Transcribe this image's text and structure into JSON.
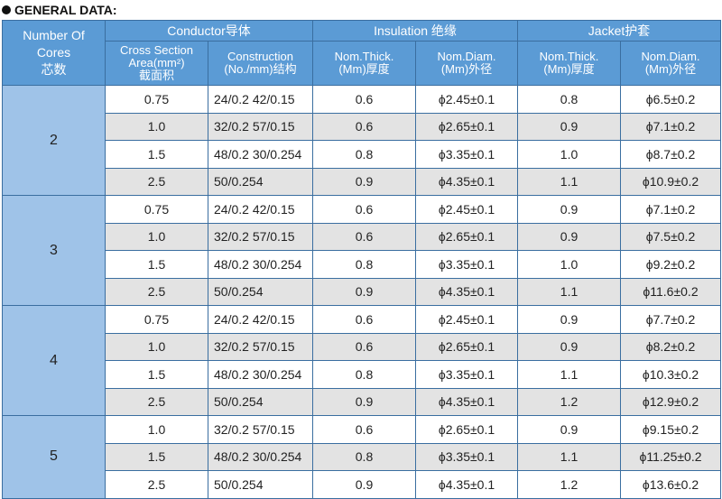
{
  "title": "GENERAL DATA:",
  "header": {
    "cores": [
      "Number Of",
      "Cores",
      "芯数"
    ],
    "conductor": "Conductor导体",
    "insulation": "Insulation 绝缘",
    "jacket": "Jacket护套",
    "cross_section": [
      "Cross Section",
      "Area(mm²)",
      "截面积"
    ],
    "construction": [
      "Construction",
      "(No./mm)结构"
    ],
    "ins_thick": [
      "Nom.Thick.",
      "(Mm)厚度"
    ],
    "ins_diam": [
      "Nom.Diam.",
      "(Mm)外径"
    ],
    "jac_thick": [
      "Nom.Thick.",
      "(Mm)厚度"
    ],
    "jac_diam": [
      "Nom.Diam.",
      "(Mm)外径"
    ]
  },
  "groups": [
    {
      "cores": "2",
      "rows": [
        {
          "area": "0.75",
          "construction": "24/0.2  42/0.15",
          "ins_thick": "0.6",
          "ins_diam": "ϕ2.45±0.1",
          "jac_thick": "0.8",
          "jac_diam": "ϕ6.5±0.2"
        },
        {
          "area": "1.0",
          "construction": "32/0.2  57/0.15",
          "ins_thick": "0.6",
          "ins_diam": "ϕ2.65±0.1",
          "jac_thick": "0.9",
          "jac_diam": "ϕ7.1±0.2"
        },
        {
          "area": "1.5",
          "construction": "48/0.2 30/0.254",
          "ins_thick": "0.8",
          "ins_diam": "ϕ3.35±0.1",
          "jac_thick": "1.0",
          "jac_diam": "ϕ8.7±0.2"
        },
        {
          "area": "2.5",
          "construction": "50/0.254",
          "ins_thick": "0.9",
          "ins_diam": "ϕ4.35±0.1",
          "jac_thick": "1.1",
          "jac_diam": "ϕ10.9±0.2"
        }
      ]
    },
    {
      "cores": "3",
      "rows": [
        {
          "area": "0.75",
          "construction": "24/0.2  42/0.15",
          "ins_thick": "0.6",
          "ins_diam": "ϕ2.45±0.1",
          "jac_thick": "0.9",
          "jac_diam": "ϕ7.1±0.2"
        },
        {
          "area": "1.0",
          "construction": "32/0.2  57/0.15",
          "ins_thick": "0.6",
          "ins_diam": "ϕ2.65±0.1",
          "jac_thick": "0.9",
          "jac_diam": "ϕ7.5±0.2"
        },
        {
          "area": "1.5",
          "construction": "48/0.2 30/0.254",
          "ins_thick": "0.8",
          "ins_diam": "ϕ3.35±0.1",
          "jac_thick": "1.0",
          "jac_diam": "ϕ9.2±0.2"
        },
        {
          "area": "2.5",
          "construction": "50/0.254",
          "ins_thick": "0.9",
          "ins_diam": "ϕ4.35±0.1",
          "jac_thick": "1.1",
          "jac_diam": "ϕ11.6±0.2"
        }
      ]
    },
    {
      "cores": "4",
      "rows": [
        {
          "area": "0.75",
          "construction": "24/0.2  42/0.15",
          "ins_thick": "0.6",
          "ins_diam": "ϕ2.45±0.1",
          "jac_thick": "0.9",
          "jac_diam": "ϕ7.7±0.2"
        },
        {
          "area": "1.0",
          "construction": "32/0.2  57/0.15",
          "ins_thick": "0.6",
          "ins_diam": "ϕ2.65±0.1",
          "jac_thick": "0.9",
          "jac_diam": "ϕ8.2±0.2"
        },
        {
          "area": "1.5",
          "construction": "48/0.2 30/0.254",
          "ins_thick": "0.8",
          "ins_diam": "ϕ3.35±0.1",
          "jac_thick": "1.1",
          "jac_diam": "ϕ10.3±0.2"
        },
        {
          "area": "2.5",
          "construction": "50/0.254",
          "ins_thick": "0.9",
          "ins_diam": "ϕ4.35±0.1",
          "jac_thick": "1.2",
          "jac_diam": "ϕ12.9±0.2"
        }
      ]
    },
    {
      "cores": "5",
      "rows": [
        {
          "area": "1.0",
          "construction": "32/0.2  57/0.15",
          "ins_thick": "0.6",
          "ins_diam": "ϕ2.65±0.1",
          "jac_thick": "0.9",
          "jac_diam": "ϕ9.15±0.2"
        },
        {
          "area": "1.5",
          "construction": "48/0.2 30/0.254",
          "ins_thick": "0.8",
          "ins_diam": "ϕ3.35±0.1",
          "jac_thick": "1.1",
          "jac_diam": "ϕ11.25±0.2"
        },
        {
          "area": "2.5",
          "construction": "50/0.254",
          "ins_thick": "0.9",
          "ins_diam": "ϕ4.35±0.1",
          "jac_thick": "1.2",
          "jac_diam": "ϕ13.6±0.2"
        }
      ]
    }
  ]
}
